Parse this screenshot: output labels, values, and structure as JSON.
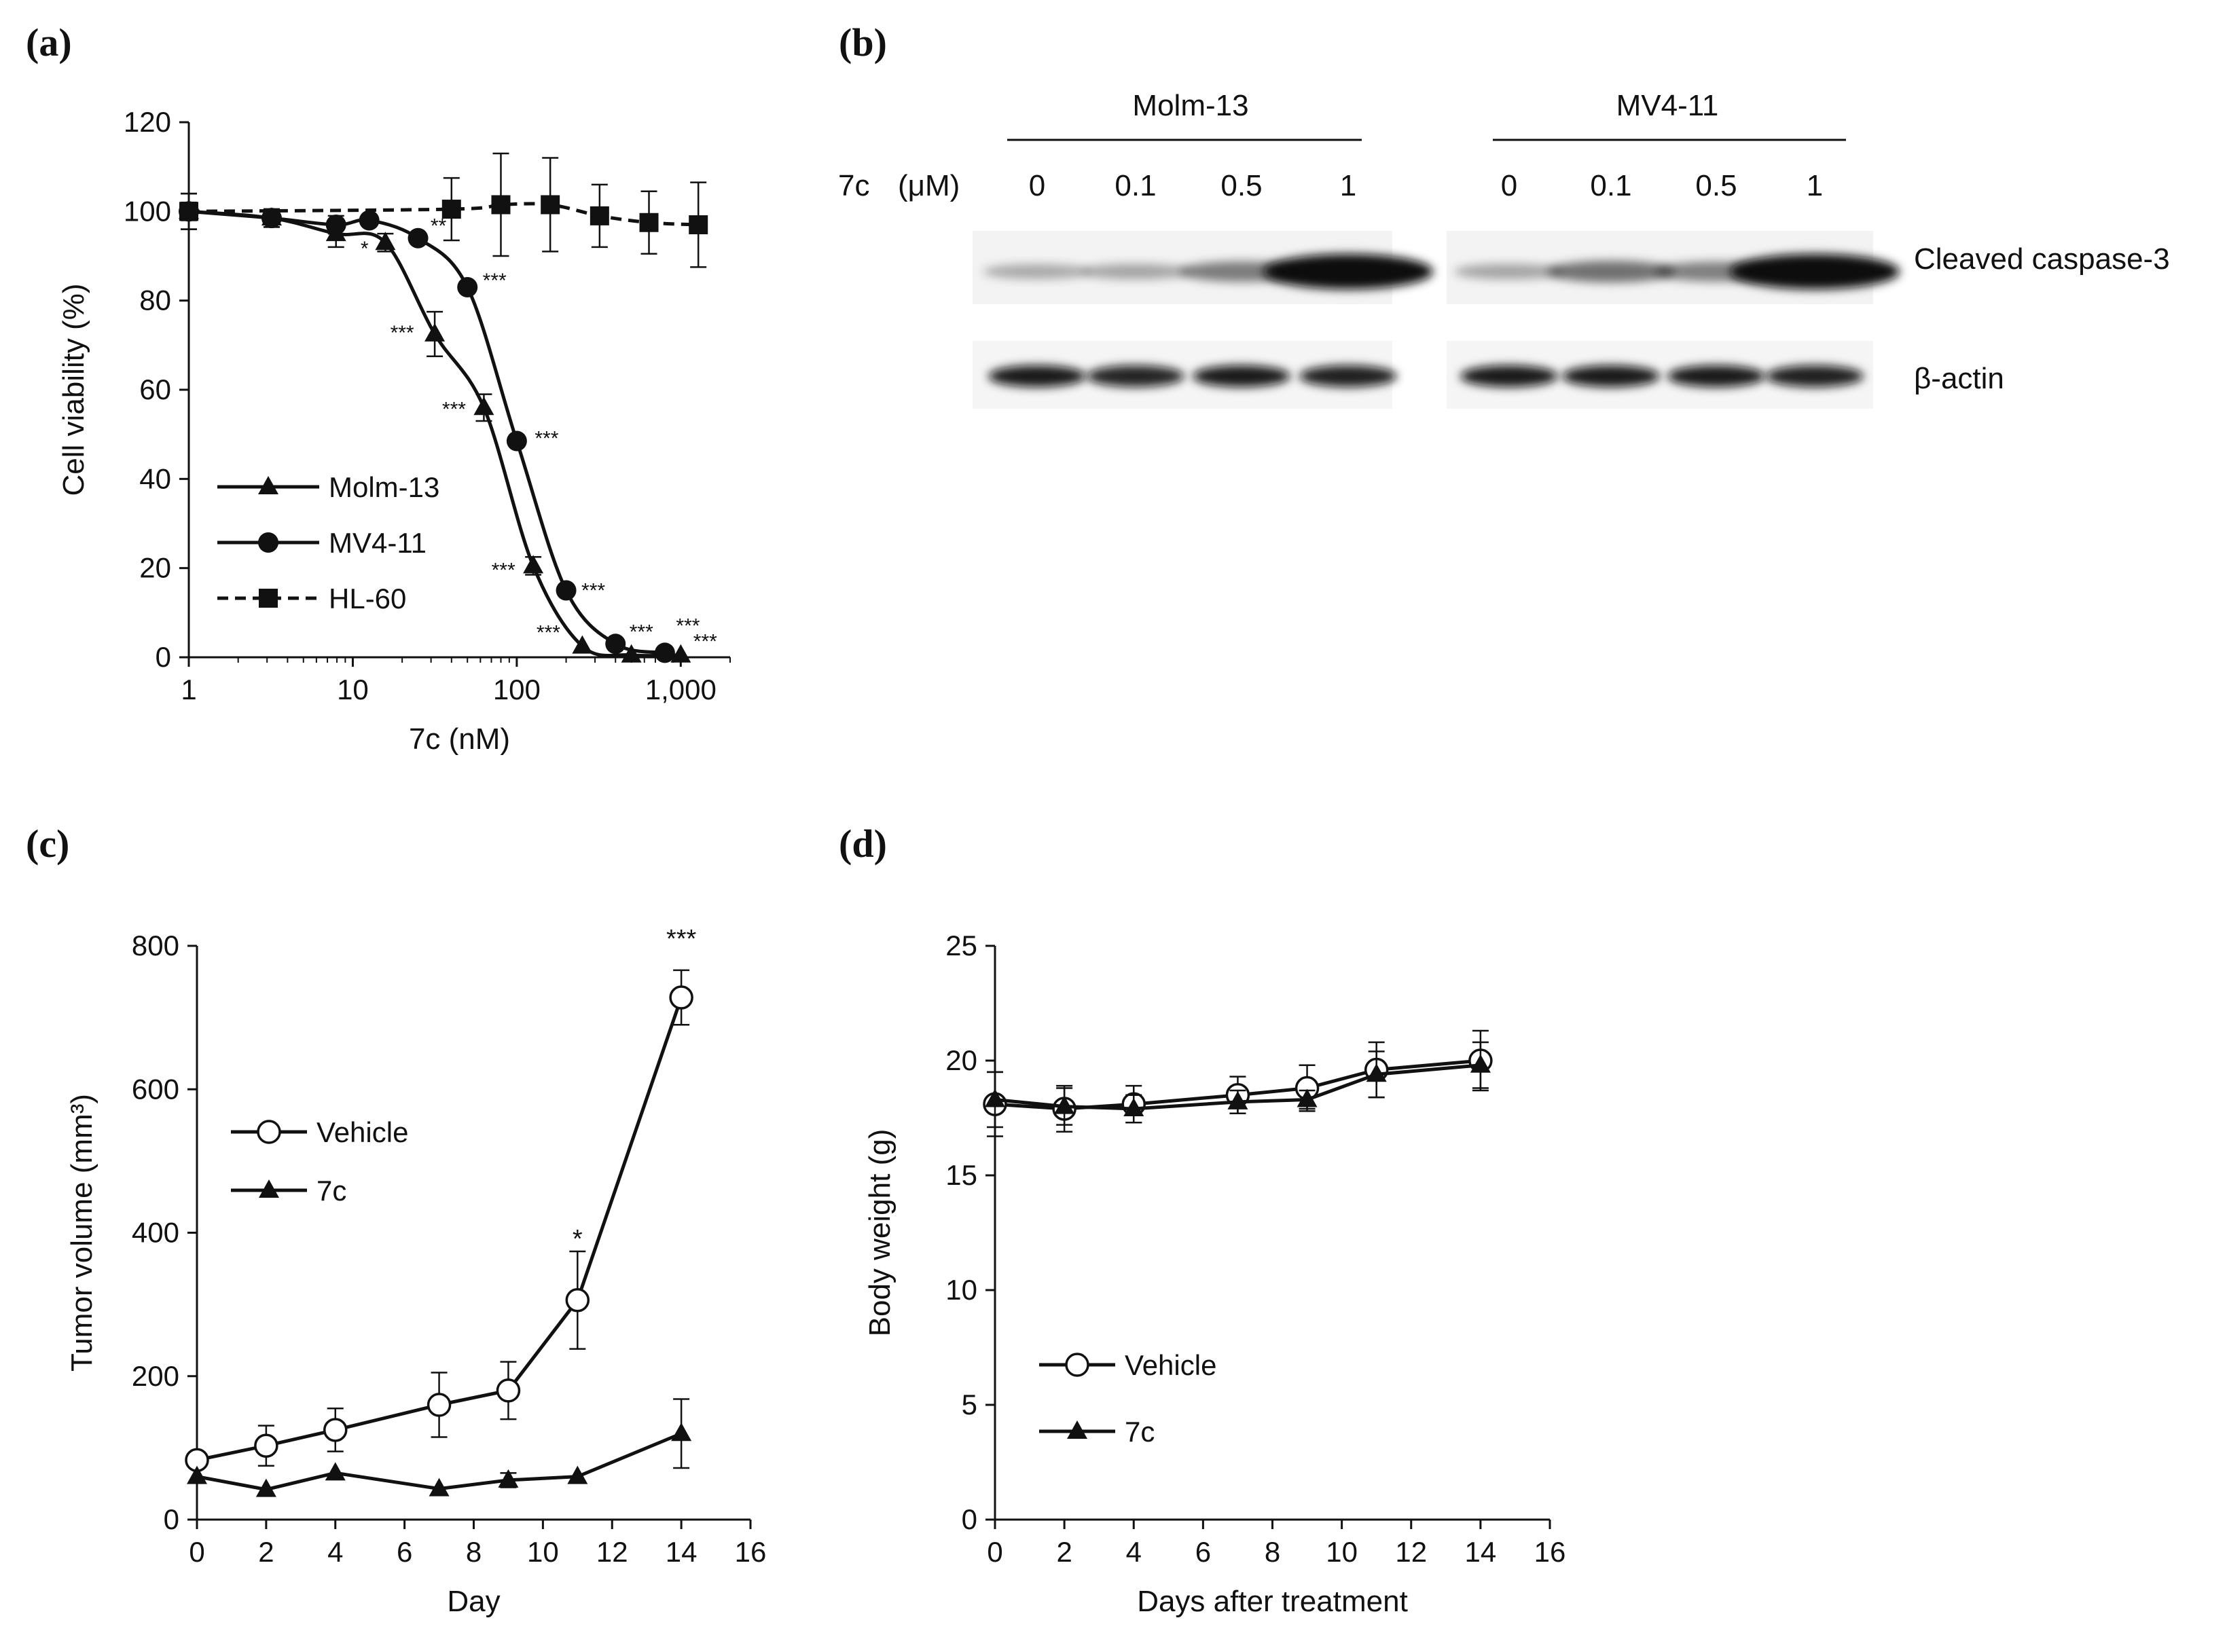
{
  "panel_labels": {
    "a": "(a)",
    "b": "(b)",
    "c": "(c)",
    "d": "(d)"
  },
  "colors": {
    "ink": "#111111",
    "background": "#ffffff",
    "band": "#0c0c0c"
  },
  "chart_data": [
    {
      "id": "a",
      "type": "line",
      "xscale": "log",
      "xlabel": "7c (nM)",
      "ylabel": "Cell viability (%)",
      "xlim": [
        1,
        2000
      ],
      "ylim": [
        0,
        120
      ],
      "xticks": [
        1,
        10,
        100,
        1000
      ],
      "xtick_labels": [
        "1",
        "10",
        "100",
        "1,000"
      ],
      "yticks": [
        0,
        20,
        40,
        60,
        80,
        100,
        120
      ],
      "ytick_labels": [
        "0",
        "20",
        "40",
        "60",
        "80",
        "100",
        "120"
      ],
      "series": [
        {
          "name": "Molm-13",
          "marker": "triangle",
          "dash": false,
          "x": [
            1,
            3.2,
            7.9,
            15.8,
            31.6,
            63,
            126,
            251,
            500,
            1000
          ],
          "y": [
            100,
            98.5,
            95,
            93,
            72.5,
            56,
            20.5,
            2.5,
            0.5,
            0.5
          ],
          "err": [
            4,
            2,
            3,
            2,
            5,
            3,
            2,
            0,
            0,
            0
          ],
          "sig": [
            "",
            "",
            "*",
            "",
            "***",
            "***",
            "***",
            "***",
            "",
            "***"
          ]
        },
        {
          "name": "MV4-11",
          "marker": "circle",
          "dash": false,
          "x": [
            1,
            3.2,
            7.9,
            12.6,
            25,
            50,
            100,
            200,
            400,
            800
          ],
          "y": [
            100,
            98.5,
            97,
            98,
            94,
            83,
            48.5,
            15,
            3,
            1
          ],
          "err": [
            2,
            2,
            2,
            1,
            1,
            1,
            1,
            1,
            0,
            0
          ],
          "sig": [
            "",
            "",
            "",
            "",
            "**",
            "***",
            "***",
            "***",
            "***",
            "***"
          ]
        },
        {
          "name": "HL-60",
          "marker": "square",
          "dash": true,
          "x": [
            1,
            40,
            80,
            160,
            320,
            640,
            1280
          ],
          "y": [
            100,
            100.5,
            101.5,
            101.5,
            99,
            97.5,
            97
          ],
          "err": [
            4,
            7,
            11.5,
            10.5,
            7,
            7,
            9.5
          ],
          "sig": [
            "",
            "",
            "",
            "",
            "",
            "",
            ""
          ]
        }
      ]
    },
    {
      "id": "c",
      "type": "line",
      "xlabel": "Day",
      "ylabel": "Tumor volume (mm³)",
      "xlim": [
        0,
        16
      ],
      "ylim": [
        0,
        800
      ],
      "xticks": [
        0,
        2,
        4,
        6,
        8,
        10,
        12,
        14,
        16
      ],
      "xtick_labels": [
        "0",
        "2",
        "4",
        "6",
        "8",
        "10",
        "12",
        "14",
        "16"
      ],
      "yticks": [
        0,
        200,
        400,
        600,
        800
      ],
      "ytick_labels": [
        "0",
        "200",
        "400",
        "600",
        "800"
      ],
      "series": [
        {
          "name": "Vehicle",
          "marker": "open-circle",
          "dash": false,
          "x": [
            0,
            2,
            4,
            7,
            9,
            11,
            14
          ],
          "y": [
            83,
            103,
            125,
            160,
            180,
            306,
            728
          ],
          "err": [
            8,
            28,
            30,
            45,
            40,
            68,
            38
          ],
          "sig": [
            "",
            "",
            "",
            "",
            "",
            "*",
            "***"
          ]
        },
        {
          "name": "7c",
          "marker": "triangle",
          "dash": false,
          "x": [
            0,
            2,
            4,
            7,
            9,
            11,
            14
          ],
          "y": [
            60,
            42,
            65,
            43,
            55,
            60,
            120
          ],
          "err": [
            0,
            0,
            0,
            0,
            10,
            0,
            48
          ],
          "sig": [
            "",
            "",
            "",
            "",
            "",
            "",
            ""
          ]
        }
      ]
    },
    {
      "id": "d",
      "type": "line",
      "xlabel": "Days after treatment",
      "ylabel": "Body weight (g)",
      "xlim": [
        0,
        16
      ],
      "ylim": [
        0,
        25
      ],
      "xticks": [
        0,
        2,
        4,
        6,
        8,
        10,
        12,
        14,
        16
      ],
      "xtick_labels": [
        "0",
        "2",
        "4",
        "6",
        "8",
        "10",
        "12",
        "14",
        "16"
      ],
      "yticks": [
        0,
        5,
        10,
        15,
        20,
        25
      ],
      "ytick_labels": [
        "0",
        "5",
        "10",
        "15",
        "20",
        "25"
      ],
      "series": [
        {
          "name": "Vehicle",
          "marker": "open-circle",
          "dash": false,
          "x": [
            0,
            2,
            4,
            7,
            9,
            11,
            14
          ],
          "y": [
            18.1,
            17.9,
            18.1,
            18.5,
            18.8,
            19.6,
            20.0
          ],
          "err": [
            1.4,
            1.0,
            0.8,
            0.8,
            1.0,
            1.2,
            1.3
          ],
          "sig": [
            "",
            "",
            "",
            "",
            "",
            "",
            ""
          ]
        },
        {
          "name": "7c",
          "marker": "triangle",
          "dash": false,
          "x": [
            0,
            2,
            4,
            7,
            9,
            11,
            14
          ],
          "y": [
            18.3,
            18.0,
            17.9,
            18.2,
            18.3,
            19.4,
            19.8
          ],
          "err": [
            1.2,
            0.8,
            0.6,
            0.5,
            0.4,
            1.0,
            1.0
          ],
          "sig": [
            "",
            "",
            "",
            "",
            "",
            "",
            ""
          ]
        }
      ]
    }
  ],
  "western_blot": {
    "groups": [
      {
        "name": "Molm-13",
        "doses": [
          "0",
          "0.1",
          "0.5",
          "1"
        ],
        "caspase_intensity": [
          0.18,
          0.2,
          0.4,
          1.0
        ],
        "actin_intensity": [
          0.95,
          0.9,
          0.95,
          0.92
        ]
      },
      {
        "name": "MV4-11",
        "doses": [
          "0",
          "0.1",
          "0.5",
          "1"
        ],
        "caspase_intensity": [
          0.2,
          0.45,
          0.38,
          1.0
        ],
        "actin_intensity": [
          0.95,
          0.95,
          0.95,
          0.92
        ]
      }
    ],
    "dose_label": "7c",
    "dose_unit": "(μM)",
    "row_labels": [
      "Cleaved caspase-3",
      "β-actin"
    ]
  }
}
